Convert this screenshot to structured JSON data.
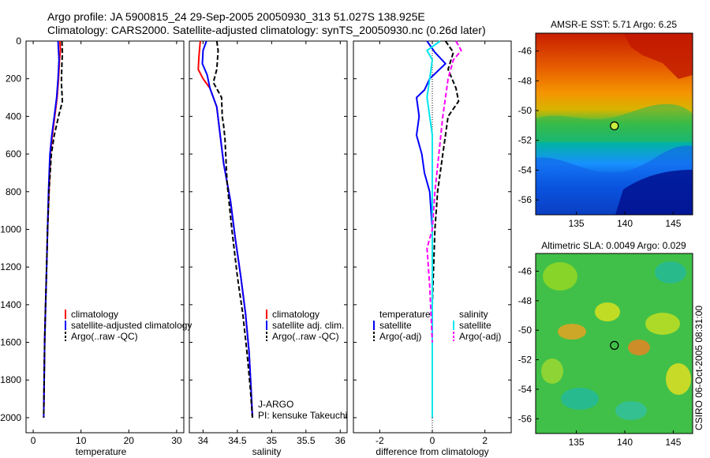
{
  "title": {
    "line1": "Argo profile: JA 5900815_24 29-Sep-2005 20050930_313 51.027S 138.925E",
    "line2": "Climatology: CARS2000. Satellite-adjusted climatology: synTS_20050930.nc (0.26d later)"
  },
  "side_label": "CSIRO 06-Oct-2005 08:31:00",
  "colors": {
    "climatology": "#ff0000",
    "satellite": "#0000ff",
    "argo": "#000000",
    "sal_satellite": "#00e5ee",
    "sal_argo": "#ff00ff"
  },
  "chart_data": [
    {
      "id": "temperature",
      "type": "line",
      "xlabel": "temperature",
      "xlim": [
        -1.5,
        31.5
      ],
      "xticks": [
        0,
        10,
        20,
        30
      ],
      "ylim": [
        0,
        2080
      ],
      "yticks": [
        0,
        200,
        400,
        600,
        800,
        1000,
        1200,
        1400,
        1600,
        1800,
        2000
      ],
      "ytick_labels": [
        "0",
        "200",
        "400",
        "600",
        "800",
        "1000",
        "1200",
        "1400",
        "1600",
        "1800",
        "2000"
      ],
      "legend": [
        "climatology",
        "satellite-adjusted climatology",
        "Argo(..raw -QC)"
      ],
      "series": [
        {
          "name": "climatology",
          "style": "solid",
          "x": [
            5.6,
            5.7,
            5.5,
            5.3,
            5.0,
            4.5,
            4.0,
            3.6,
            3.3,
            3.0,
            2.8,
            2.6,
            2.4,
            2.3,
            2.25,
            2.2
          ],
          "y": [
            0,
            50,
            100,
            200,
            300,
            400,
            500,
            600,
            800,
            1000,
            1200,
            1400,
            1600,
            1800,
            1900,
            2000
          ]
        },
        {
          "name": "satellite-adjusted climatology",
          "style": "solid",
          "x": [
            5.2,
            5.3,
            5.4,
            5.2,
            4.9,
            4.4,
            3.9,
            3.5,
            3.2,
            3.0,
            2.8,
            2.6,
            2.4,
            2.3,
            2.25,
            2.2
          ],
          "y": [
            0,
            50,
            100,
            200,
            300,
            400,
            500,
            600,
            800,
            1000,
            1200,
            1400,
            1600,
            1800,
            1900,
            2000
          ]
        },
        {
          "name": "Argo(..raw -QC)",
          "style": "dashed",
          "x": [
            6.0,
            6.1,
            6.0,
            5.9,
            6.1,
            5.3,
            4.4,
            3.8,
            3.3,
            3.0,
            2.8,
            2.6,
            2.4,
            2.3,
            2.2
          ],
          "y": [
            0,
            60,
            120,
            220,
            320,
            400,
            500,
            600,
            800,
            1000,
            1200,
            1400,
            1600,
            1800,
            2000
          ]
        }
      ]
    },
    {
      "id": "salinity",
      "type": "line",
      "xlabel": "salinity",
      "xlim": [
        33.8,
        36.1
      ],
      "xticks": [
        34,
        34.5,
        35,
        35.5,
        36
      ],
      "ylim": [
        0,
        2080
      ],
      "yticks": [
        0,
        200,
        400,
        600,
        800,
        1000,
        1200,
        1400,
        1600,
        1800,
        2000
      ],
      "legend": [
        "climatology",
        "satellite adj. clim.",
        "Argo(..raw -QC)"
      ],
      "annotation": [
        "J-ARGO",
        "PI: kensuke Takeuchi"
      ],
      "series": [
        {
          "name": "climatology",
          "style": "solid",
          "x": [
            33.96,
            33.94,
            33.93,
            34.0,
            34.1,
            34.2,
            34.25,
            34.3,
            34.4,
            34.47,
            34.55,
            34.62,
            34.67,
            34.7,
            34.72
          ],
          "y": [
            0,
            80,
            150,
            200,
            250,
            350,
            500,
            650,
            850,
            1050,
            1250,
            1450,
            1650,
            1850,
            2000
          ]
        },
        {
          "name": "satellite adj. clim.",
          "style": "solid",
          "x": [
            34.05,
            34.0,
            33.99,
            34.06,
            34.1,
            34.2,
            34.25,
            34.3,
            34.4,
            34.47,
            34.55,
            34.62,
            34.67,
            34.7,
            34.72
          ],
          "y": [
            0,
            50,
            120,
            180,
            250,
            350,
            500,
            650,
            850,
            1050,
            1250,
            1450,
            1650,
            1850,
            2000
          ]
        },
        {
          "name": "Argo(..raw -QC)",
          "style": "dashed",
          "x": [
            34.2,
            34.22,
            34.2,
            34.15,
            34.27,
            34.28,
            34.3,
            34.32,
            34.35,
            34.42,
            34.5,
            34.58,
            34.64,
            34.69,
            34.72
          ],
          "y": [
            0,
            50,
            150,
            220,
            300,
            400,
            450,
            520,
            750,
            1000,
            1250,
            1450,
            1650,
            1850,
            2000
          ]
        }
      ]
    },
    {
      "id": "difference",
      "type": "line",
      "xlabel": "difference from climatology",
      "xlim": [
        -3,
        3
      ],
      "xticks": [
        -2,
        0,
        2
      ],
      "ylim": [
        0,
        2080
      ],
      "yticks": [
        0,
        200,
        400,
        600,
        800,
        1000,
        1200,
        1400,
        1600,
        1800,
        2000
      ],
      "legend_groups": [
        {
          "heading": "temperature",
          "items": [
            "satellite",
            "Argo(-adj)"
          ]
        },
        {
          "heading": "salinity",
          "items": [
            "satellite",
            "Argo(-adj)"
          ]
        }
      ],
      "series": [
        {
          "name": "temperature satellite",
          "style": "solid",
          "x": [
            -0.2,
            0.1,
            0.5,
            -0.1,
            -0.3,
            -0.6,
            -0.5,
            -0.6,
            -0.4,
            -0.3,
            -0.1,
            0.0,
            0.0,
            0.0,
            0.0
          ],
          "y": [
            0,
            60,
            120,
            200,
            260,
            300,
            400,
            500,
            600,
            700,
            800,
            1000,
            1400,
            1800,
            2000
          ]
        },
        {
          "name": "temperature Argo(-adj)",
          "style": "dashed",
          "x": [
            0.5,
            0.8,
            0.6,
            0.9,
            1.0,
            0.6,
            0.5,
            0.4,
            0.3,
            0.2,
            0.1,
            0.0,
            0.0
          ],
          "y": [
            0,
            60,
            150,
            250,
            320,
            400,
            500,
            600,
            700,
            800,
            1000,
            1400,
            2000
          ]
        },
        {
          "name": "salinity satellite",
          "style": "solid",
          "x": [
            0.3,
            -0.2,
            0.0,
            -0.1,
            -0.2,
            0.0,
            0.0,
            0.0,
            0.0
          ],
          "y": [
            0,
            50,
            100,
            200,
            300,
            500,
            800,
            1200,
            2000
          ]
        },
        {
          "name": "salinity Argo(-adj)",
          "style": "dashed",
          "x": [
            0.9,
            1.1,
            0.8,
            0.6,
            0.5,
            0.4,
            0.1,
            0.0,
            -0.2,
            -0.1,
            0.0
          ],
          "y": [
            0,
            50,
            100,
            200,
            300,
            400,
            800,
            1000,
            1100,
            1300,
            1600
          ]
        }
      ]
    },
    {
      "id": "sst_map",
      "type": "heatmap",
      "title": "AMSR-E SST: 5.71 Argo: 6.25",
      "xlim": [
        130.8,
        147
      ],
      "ylim": [
        -57,
        -44.8
      ],
      "xticks": [
        135,
        140,
        145
      ],
      "yticks": [
        -46,
        -48,
        -50,
        -52,
        -54,
        -56
      ],
      "marker": {
        "lon": 138.925,
        "lat": -51.027
      }
    },
    {
      "id": "sla_map",
      "type": "heatmap",
      "title": "Altimetric SLA: 0.0049 Argo: 0.029",
      "xlim": [
        130.8,
        147
      ],
      "ylim": [
        -57,
        -44.8
      ],
      "xticks": [
        135,
        140,
        145
      ],
      "yticks": [
        -46,
        -48,
        -50,
        -52,
        -54,
        -56
      ],
      "marker": {
        "lon": 138.925,
        "lat": -51.027
      }
    }
  ]
}
